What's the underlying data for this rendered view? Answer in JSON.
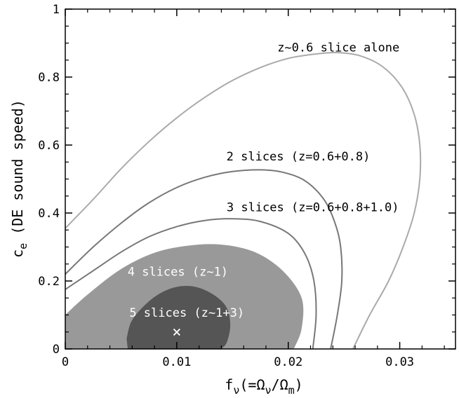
{
  "chart_data": {
    "type": "contour",
    "xlabel": {
      "base": "f",
      "sub1": "ν",
      "mid": "(=Ω",
      "sub2": "ν",
      "slash": "/Ω",
      "sub3": "m",
      "close": ")"
    },
    "ylabel": {
      "base": "c",
      "sub": "e",
      "rest": " (DE sound speed)"
    },
    "xlim": [
      0,
      0.035
    ],
    "ylim": [
      0,
      1
    ],
    "x_ticks": [
      0,
      0.01,
      0.02,
      0.03
    ],
    "x_tick_labels": [
      "0",
      "0.01",
      "0.02",
      "0.03"
    ],
    "y_ticks": [
      0,
      0.2,
      0.4,
      0.6,
      0.8,
      1
    ],
    "y_tick_labels": [
      "0",
      "0.2",
      "0.4",
      "0.6",
      "0.8",
      "1"
    ],
    "fiducial_marker": {
      "x": 0.01,
      "y": 0.05,
      "symbol": "×"
    },
    "contours": [
      {
        "label": "z~0.6 slice alone",
        "style": "line",
        "color": "#aaaaaa",
        "label_pos": [
          0.0245,
          0.875
        ],
        "label_color": "#000000",
        "points": [
          [
            0,
            0.355
          ],
          [
            0.0025,
            0.44
          ],
          [
            0.005,
            0.53
          ],
          [
            0.0075,
            0.61
          ],
          [
            0.01,
            0.68
          ],
          [
            0.0125,
            0.74
          ],
          [
            0.015,
            0.79
          ],
          [
            0.0175,
            0.828
          ],
          [
            0.02,
            0.855
          ],
          [
            0.0225,
            0.868
          ],
          [
            0.0245,
            0.872
          ],
          [
            0.0265,
            0.862
          ],
          [
            0.0285,
            0.83
          ],
          [
            0.0302,
            0.77
          ],
          [
            0.0313,
            0.69
          ],
          [
            0.0318,
            0.6
          ],
          [
            0.0318,
            0.5
          ],
          [
            0.0313,
            0.4
          ],
          [
            0.0303,
            0.3
          ],
          [
            0.029,
            0.2
          ],
          [
            0.0273,
            0.1
          ],
          [
            0.0258,
            0
          ]
        ]
      },
      {
        "label": "2 slices (z=0.6+0.8)",
        "style": "line",
        "color": "#777777",
        "label_pos": [
          0.0209,
          0.555
        ],
        "label_color": "#000000",
        "points": [
          [
            0,
            0.22
          ],
          [
            0.0025,
            0.3
          ],
          [
            0.005,
            0.37
          ],
          [
            0.0075,
            0.43
          ],
          [
            0.01,
            0.475
          ],
          [
            0.0125,
            0.505
          ],
          [
            0.015,
            0.522
          ],
          [
            0.0175,
            0.527
          ],
          [
            0.0195,
            0.52
          ],
          [
            0.0215,
            0.495
          ],
          [
            0.0232,
            0.44
          ],
          [
            0.0242,
            0.37
          ],
          [
            0.0247,
            0.3
          ],
          [
            0.0248,
            0.2
          ],
          [
            0.0244,
            0.1
          ],
          [
            0.0238,
            0
          ]
        ]
      },
      {
        "label": "3 slices (z=0.6+0.8+1.0)",
        "style": "line",
        "color": "#777777",
        "label_pos": [
          0.0222,
          0.405
        ],
        "label_color": "#000000",
        "points": [
          [
            0,
            0.175
          ],
          [
            0.0025,
            0.23
          ],
          [
            0.005,
            0.285
          ],
          [
            0.0075,
            0.33
          ],
          [
            0.01,
            0.36
          ],
          [
            0.0125,
            0.378
          ],
          [
            0.015,
            0.383
          ],
          [
            0.0175,
            0.375
          ],
          [
            0.02,
            0.34
          ],
          [
            0.0215,
            0.28
          ],
          [
            0.0223,
            0.2
          ],
          [
            0.0225,
            0.1
          ],
          [
            0.0222,
            0
          ]
        ]
      },
      {
        "label": "4 slices (z~1)",
        "style": "filled",
        "color": "#999999",
        "label_pos": [
          0.0101,
          0.215
        ],
        "label_color": "#ffffff",
        "points": [
          [
            0,
            0.1
          ],
          [
            0.002,
            0.16
          ],
          [
            0.005,
            0.235
          ],
          [
            0.008,
            0.283
          ],
          [
            0.011,
            0.304
          ],
          [
            0.014,
            0.307
          ],
          [
            0.017,
            0.285
          ],
          [
            0.0195,
            0.23
          ],
          [
            0.0212,
            0.15
          ],
          [
            0.0212,
            0.06
          ],
          [
            0.0205,
            0
          ],
          [
            0,
            0
          ]
        ]
      },
      {
        "label": "5 slices (z~1+3)",
        "style": "filled",
        "color": "#555555",
        "label_pos": [
          0.0109,
          0.095
        ],
        "label_color": "#ffffff",
        "points": [
          [
            0.0055,
            0.03
          ],
          [
            0.006,
            0.085
          ],
          [
            0.0075,
            0.14
          ],
          [
            0.009,
            0.172
          ],
          [
            0.0105,
            0.185
          ],
          [
            0.012,
            0.18
          ],
          [
            0.0135,
            0.155
          ],
          [
            0.0145,
            0.12
          ],
          [
            0.0148,
            0.07
          ],
          [
            0.0145,
            0.02
          ],
          [
            0.014,
            0
          ],
          [
            0.0056,
            0
          ]
        ]
      }
    ]
  }
}
